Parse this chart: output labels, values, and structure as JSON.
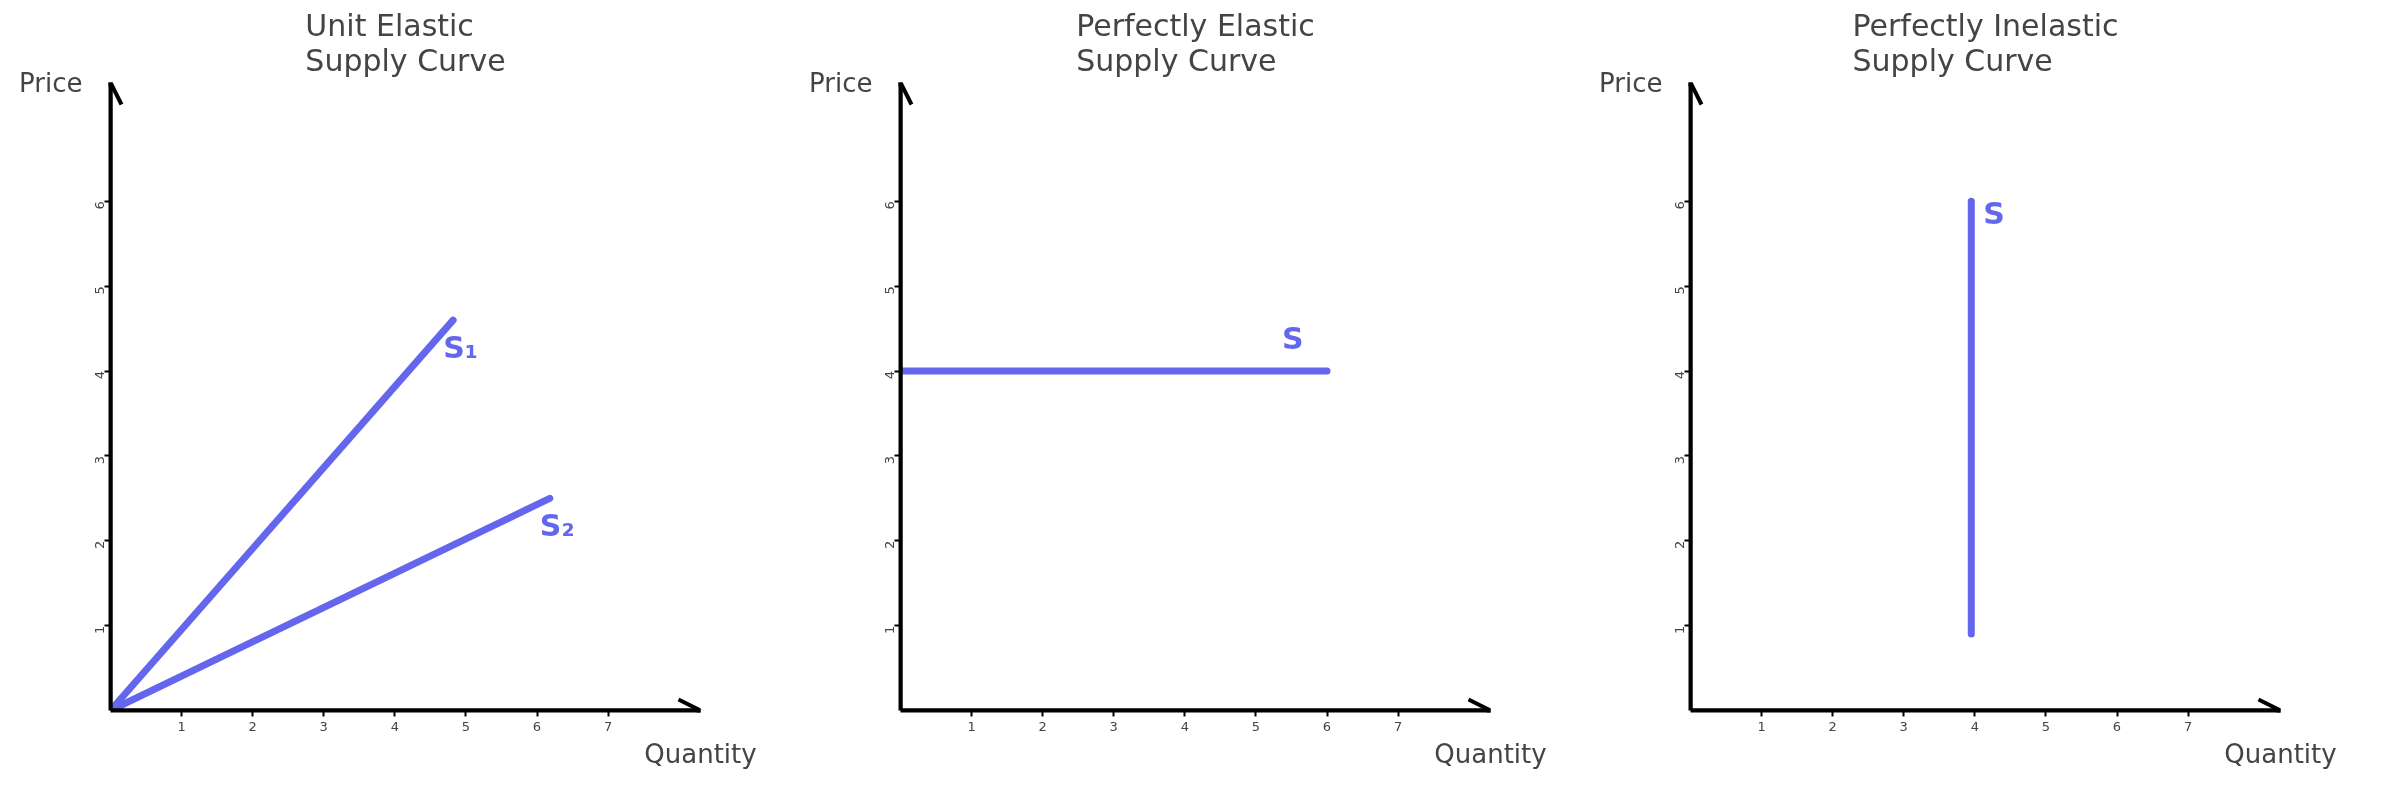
{
  "chart_data": [
    {
      "type": "line",
      "title": "Unit Elastic\nSupply Curve",
      "xlabel": "Quantity",
      "ylabel": "Price",
      "xlim": [
        0,
        8.3
      ],
      "ylim": [
        0,
        7.4
      ],
      "xticks": [
        1,
        2,
        3,
        4,
        5,
        6,
        7
      ],
      "yticks": [
        1,
        2,
        3,
        4,
        5,
        6
      ],
      "grid": false,
      "series": [
        {
          "name": "S₁",
          "color": "#6466ee",
          "x": [
            0,
            4.82
          ],
          "values": [
            0,
            4.6
          ]
        },
        {
          "name": "S₂",
          "color": "#6466ee",
          "x": [
            0,
            6.18
          ],
          "values": [
            0,
            2.5
          ]
        }
      ]
    },
    {
      "type": "line",
      "title": "Perfectly Elastic\nSupply Curve",
      "xlabel": "Quantity",
      "ylabel": "Price",
      "xlim": [
        0,
        8.3
      ],
      "ylim": [
        0,
        7.4
      ],
      "xticks": [
        1,
        2,
        3,
        4,
        5,
        6,
        7
      ],
      "yticks": [
        1,
        2,
        3,
        4,
        5,
        6
      ],
      "grid": false,
      "series": [
        {
          "name": "S",
          "color": "#6466ee",
          "x": [
            0,
            6
          ],
          "values": [
            4,
            4
          ]
        }
      ]
    },
    {
      "type": "line",
      "title": "Perfectly Inelastic\nSupply Curve",
      "xlabel": "Quantity",
      "ylabel": "Price",
      "xlim": [
        0,
        8.3
      ],
      "ylim": [
        0,
        7.4
      ],
      "xticks": [
        1,
        2,
        3,
        4,
        5,
        6,
        7
      ],
      "yticks": [
        1,
        2,
        3,
        4,
        5,
        6
      ],
      "grid": false,
      "series": [
        {
          "name": "S",
          "color": "#6466ee",
          "x": [
            3.95,
            3.95
          ],
          "values": [
            0.9,
            6
          ]
        }
      ]
    }
  ]
}
